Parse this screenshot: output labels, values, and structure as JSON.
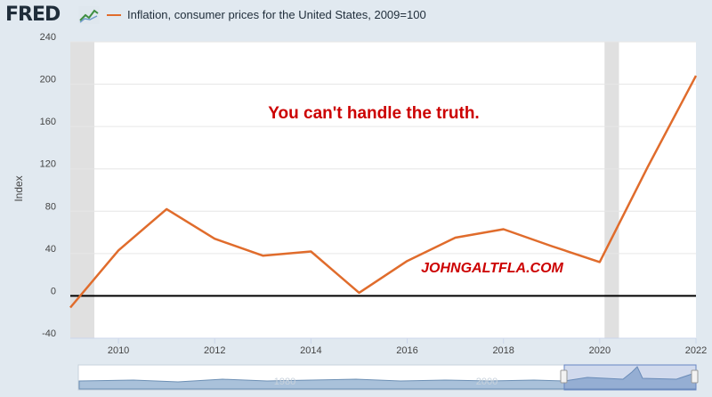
{
  "header": {
    "logo_text": "FRED",
    "logo_icon": "line-chart-icon",
    "legend_label": "Inflation, consumer prices for the United States, 2009=100"
  },
  "annotations": {
    "quote": "You can't handle the truth.",
    "watermark": "JOHNGALTFLA.COM"
  },
  "colors": {
    "series": "#e06c2c",
    "annotation": "#cc0000",
    "recession": "#e0e0e0",
    "plot_bg": "#ffffff",
    "page_bg": "#e1e9f0"
  },
  "navigator": {
    "label_left": "1980",
    "label_right": "2000"
  },
  "chart_data": {
    "type": "line",
    "title": "",
    "xlabel": "",
    "ylabel": "Index",
    "xlim": [
      2009,
      2022
    ],
    "ylim": [
      -40,
      240
    ],
    "x_ticks": [
      "2010",
      "2012",
      "2014",
      "2016",
      "2018",
      "2020",
      "2022"
    ],
    "y_ticks": [
      "240",
      "200",
      "160",
      "120",
      "80",
      "40",
      "0",
      "-40"
    ],
    "grid": true,
    "legend": "top-left",
    "zero_line": true,
    "recession_bands": [
      [
        2009.0,
        2009.5
      ],
      [
        2020.1,
        2020.4
      ]
    ],
    "series": [
      {
        "name": "Inflation, consumer prices for the United States, 2009=100",
        "x": [
          2009,
          2010,
          2011,
          2012,
          2013,
          2014,
          2015,
          2016,
          2017,
          2018,
          2019,
          2020,
          2021,
          2022
        ],
        "values": [
          -11,
          43,
          82,
          54,
          38,
          42,
          3,
          33,
          55,
          63,
          47,
          32,
          122,
          208
        ]
      }
    ]
  }
}
